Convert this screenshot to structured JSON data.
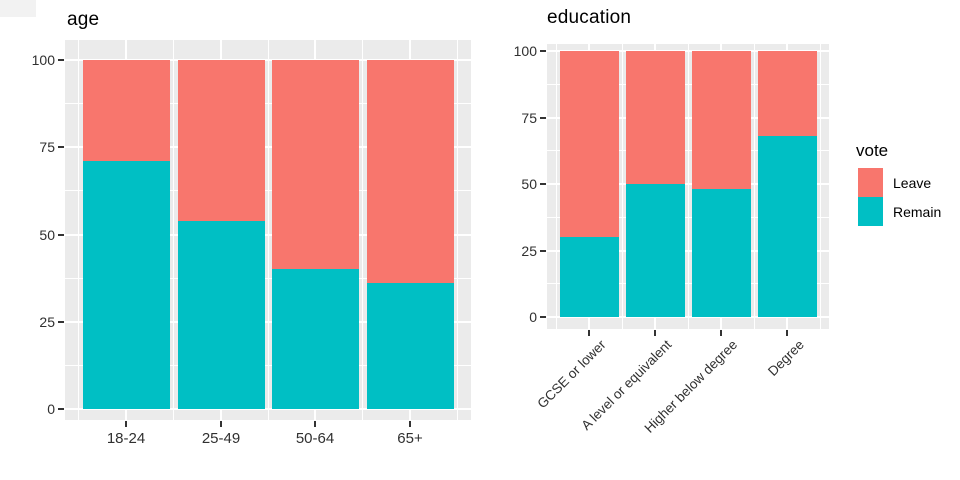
{
  "figure": {
    "background": "#FFFFFF",
    "panel_background": "#EBEBEB",
    "gridline_color": "#FFFFFF",
    "axis_text_color": "#303030",
    "title_color": "#000000"
  },
  "legend": {
    "title": "vote",
    "entries": [
      {
        "label": "Leave",
        "color": "#F8766D"
      },
      {
        "label": "Remain",
        "color": "#00BFC4"
      }
    ]
  },
  "chart_data": [
    {
      "type": "bar",
      "title": "age",
      "stacked": true,
      "unit": "percent",
      "categories": [
        "18-24",
        "25-49",
        "50-64",
        "65+"
      ],
      "series": [
        {
          "name": "Leave",
          "color": "#F8766D",
          "values": [
            29,
            46,
            60,
            64
          ]
        },
        {
          "name": "Remain",
          "color": "#00BFC4",
          "values": [
            71,
            54,
            40,
            36
          ]
        }
      ],
      "series_order": "top-to-bottom",
      "ylim": [
        0,
        100
      ],
      "yticks": [
        0,
        25,
        50,
        75,
        100
      ],
      "grid": true,
      "x_label_rotation": 0
    },
    {
      "type": "bar",
      "title": "education",
      "stacked": true,
      "unit": "percent",
      "categories": [
        "GCSE or lower",
        "A level or equivalent",
        "Higher below degree",
        "Degree"
      ],
      "series": [
        {
          "name": "Leave",
          "color": "#F8766D",
          "values": [
            70,
            50,
            52,
            32
          ]
        },
        {
          "name": "Remain",
          "color": "#00BFC4",
          "values": [
            30,
            50,
            48,
            68
          ]
        }
      ],
      "series_order": "top-to-bottom",
      "ylim": [
        0,
        100
      ],
      "yticks": [
        0,
        25,
        50,
        75,
        100
      ],
      "grid": true,
      "x_label_rotation": 45,
      "legend_position": "right"
    }
  ]
}
